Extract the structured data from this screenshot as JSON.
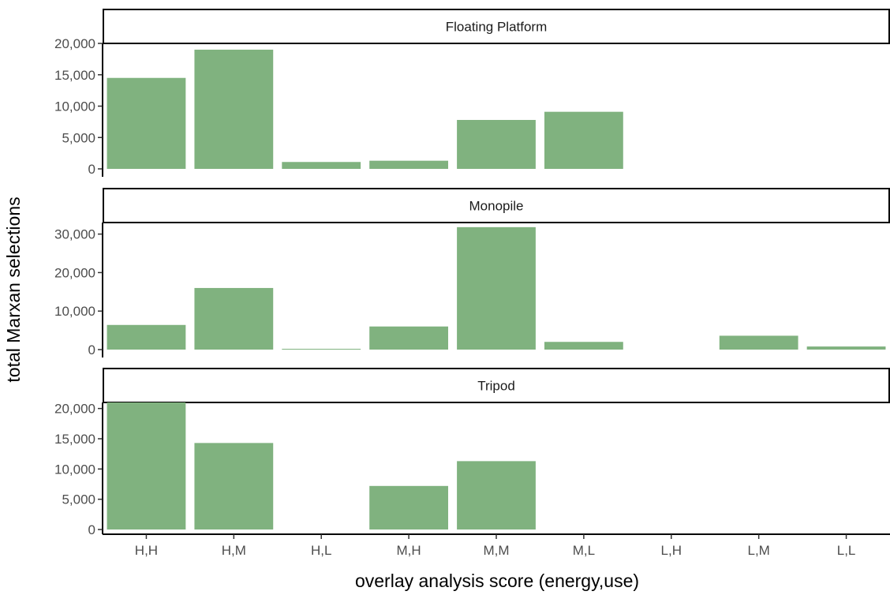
{
  "chart_data": {
    "type": "bar",
    "xlabel": "overlay analysis score (energy,use)",
    "ylabel": "total Marxan selections",
    "categories": [
      "H,H",
      "H,M",
      "H,L",
      "M,H",
      "M,M",
      "M,L",
      "L,H",
      "L,M",
      "L,L"
    ],
    "bar_color": "#80b27f",
    "grid": false,
    "panels": [
      {
        "name": "Floating Platform",
        "ylim": [
          0,
          20000
        ],
        "yticks": [
          0,
          5000,
          10000,
          15000,
          20000
        ],
        "yticklabels": [
          "0",
          "5,000",
          "10,000",
          "15,000",
          "20,000"
        ],
        "values": [
          14500,
          19000,
          1100,
          1300,
          7800,
          9100,
          null,
          null,
          null
        ]
      },
      {
        "name": "Monopile",
        "ylim": [
          0,
          33000
        ],
        "yticks": [
          0,
          10000,
          20000,
          30000
        ],
        "yticklabels": [
          "0",
          "10,000",
          "20,000",
          "30,000"
        ],
        "values": [
          6400,
          16000,
          200,
          6000,
          31800,
          2000,
          null,
          3600,
          800
        ]
      },
      {
        "name": "Tripod",
        "ylim": [
          0,
          21000
        ],
        "yticks": [
          0,
          5000,
          10000,
          15000,
          20000
        ],
        "yticklabels": [
          "0",
          "5,000",
          "10,000",
          "15,000",
          "20,000"
        ],
        "values": [
          21000,
          14300,
          null,
          7200,
          11300,
          null,
          null,
          null,
          null
        ]
      }
    ]
  }
}
